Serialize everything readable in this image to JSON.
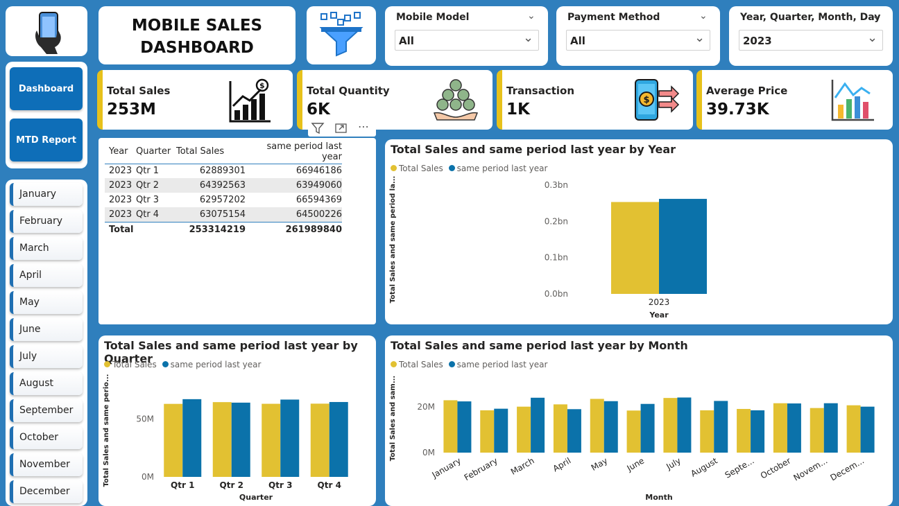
{
  "header": {
    "title_line1": "MOBILE SALES",
    "title_line2": "DASHBOARD"
  },
  "slicers": [
    {
      "label": "Mobile Model",
      "value": "All"
    },
    {
      "label": "Payment Method",
      "value": "All"
    },
    {
      "label": "Year, Quarter, Month, Day",
      "value": "2023"
    }
  ],
  "nav": {
    "dashboard": "Dashboard",
    "mtd_report": "MTD Report"
  },
  "months": [
    "January",
    "February",
    "March",
    "April",
    "May",
    "June",
    "July",
    "August",
    "September",
    "October",
    "November",
    "December"
  ],
  "kpis": [
    {
      "label": "Total Sales",
      "value": "253M",
      "icon": "sales-chart-icon"
    },
    {
      "label": "Total Quantity",
      "value": "6K",
      "icon": "coins-hand-icon"
    },
    {
      "label": "Transaction",
      "value": "1K",
      "icon": "mobile-payment-icon"
    },
    {
      "label": "Average Price",
      "value": "39.73K",
      "icon": "bar-growth-icon"
    }
  ],
  "table": {
    "headers": [
      "Year",
      "Quarter",
      "Total Sales",
      "same period last year"
    ],
    "rows": [
      [
        "2023",
        "Qtr 1",
        "62889301",
        "66946186"
      ],
      [
        "2023",
        "Qtr 2",
        "64392563",
        "63949060"
      ],
      [
        "2023",
        "Qtr 3",
        "62957202",
        "66594369"
      ],
      [
        "2023",
        "Qtr 4",
        "63075154",
        "64500226"
      ]
    ],
    "total": [
      "Total",
      "253314219",
      "261989840"
    ]
  },
  "colors": {
    "total_sales": "#e2c132",
    "last_year": "#0b72aa",
    "background": "#2f7fbd",
    "nav": "#0e6eb8"
  },
  "legend": {
    "total_sales": "Total Sales",
    "last_year": "same period last year"
  },
  "chart_data": [
    {
      "type": "bar",
      "title": "Total Sales and same period last year by Year",
      "xlabel": "Year",
      "ylabel": "Total Sales and same period la...",
      "categories": [
        "2023"
      ],
      "series": [
        {
          "name": "Total Sales",
          "values": [
            253314219
          ]
        },
        {
          "name": "same period last year",
          "values": [
            261989840
          ]
        }
      ],
      "yticks": [
        "0.0bn",
        "0.1bn",
        "0.2bn",
        "0.3bn"
      ],
      "ylim": [
        0,
        300000000
      ]
    },
    {
      "type": "bar",
      "title": "Total Sales and same period last year by Quarter",
      "xlabel": "Quarter",
      "ylabel": "Total Sales and same perio...",
      "categories": [
        "Qtr 1",
        "Qtr 2",
        "Qtr 3",
        "Qtr 4"
      ],
      "series": [
        {
          "name": "Total Sales",
          "values": [
            62889301,
            64392563,
            62957202,
            63075154
          ]
        },
        {
          "name": "same period last year",
          "values": [
            66946186,
            63949060,
            66594369,
            64500226
          ]
        }
      ],
      "yticks": [
        "0M",
        "50M"
      ],
      "ylim": [
        0,
        80000000
      ]
    },
    {
      "type": "bar",
      "title": "Total Sales and same period last year by Month",
      "xlabel": "Month",
      "ylabel": "Total Sales and sam...",
      "categories": [
        "January",
        "February",
        "March",
        "April",
        "May",
        "June",
        "July",
        "August",
        "Septe...",
        "October",
        "Novem...",
        "Decem..."
      ],
      "series": [
        {
          "name": "Total Sales",
          "values": [
            22900000,
            18500000,
            20100000,
            21100000,
            23500000,
            18400000,
            23900000,
            18500000,
            19100000,
            21600000,
            19500000,
            20700000
          ]
        },
        {
          "name": "same period last year",
          "values": [
            22400000,
            19200000,
            24000000,
            19000000,
            22500000,
            21300000,
            24100000,
            22600000,
            18500000,
            21500000,
            21600000,
            20100000
          ]
        }
      ],
      "yticks": [
        "0M",
        "20M"
      ],
      "ylim": [
        0,
        30000000
      ]
    }
  ]
}
